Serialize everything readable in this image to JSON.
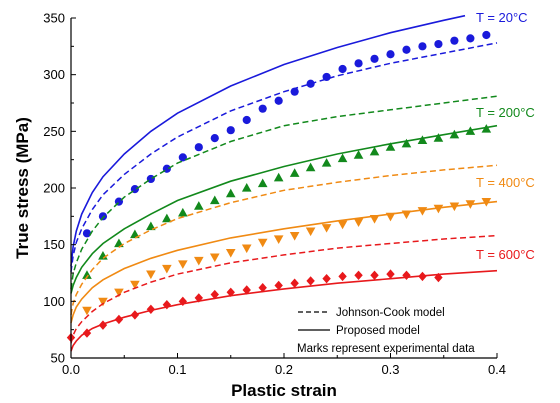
{
  "chart_data": {
    "type": "line",
    "xlabel": "Plastic strain",
    "ylabel": "True stress (MPa)",
    "xlim": [
      0.0,
      0.4
    ],
    "ylim": [
      50,
      350
    ],
    "xticks": [
      "0.0",
      "0.1",
      "0.2",
      "0.3",
      "0.4"
    ],
    "yticks": [
      "50",
      "100",
      "150",
      "200",
      "250",
      "300",
      "350"
    ],
    "grid": false,
    "legend_position": "bottom-right",
    "legend": {
      "johnson_cook": "Johnson-Cook model",
      "proposed": "Proposed model",
      "note": "Marks represent experimental data"
    },
    "series": [
      {
        "name": "T = 20°C",
        "color": "#1a1adb",
        "marker": "circle",
        "proposed": {
          "x": [
            0,
            0.002,
            0.005,
            0.01,
            0.02,
            0.03,
            0.05,
            0.075,
            0.1,
            0.15,
            0.2,
            0.25,
            0.3,
            0.35,
            0.37
          ],
          "y": [
            131,
            148,
            162,
            177,
            196,
            210,
            230,
            250,
            266,
            290,
            309,
            324,
            337,
            348,
            352
          ]
        },
        "johnson_cook": {
          "x": [
            0,
            0.002,
            0.005,
            0.01,
            0.02,
            0.03,
            0.05,
            0.075,
            0.1,
            0.15,
            0.2,
            0.25,
            0.3,
            0.35,
            0.4
          ],
          "y": [
            126,
            140,
            152,
            164,
            181,
            194,
            212,
            230,
            245,
            268,
            285,
            299,
            310,
            319,
            328
          ]
        },
        "experimental": {
          "x": [
            0.015,
            0.03,
            0.045,
            0.06,
            0.075,
            0.09,
            0.105,
            0.12,
            0.135,
            0.15,
            0.165,
            0.18,
            0.195,
            0.21,
            0.225,
            0.24,
            0.255,
            0.27,
            0.285,
            0.3,
            0.315,
            0.33,
            0.345,
            0.36,
            0.375,
            0.39
          ],
          "y": [
            160,
            175,
            188,
            199,
            208,
            217,
            227,
            236,
            244,
            251,
            260,
            270,
            277,
            285,
            292,
            298,
            305,
            310,
            314,
            318,
            322,
            325,
            327,
            330,
            332,
            335
          ]
        }
      },
      {
        "name": "T = 200°C",
        "color": "#12891c",
        "marker": "triangle-up",
        "proposed": {
          "x": [
            0,
            0.002,
            0.005,
            0.01,
            0.02,
            0.03,
            0.05,
            0.075,
            0.1,
            0.15,
            0.2,
            0.25,
            0.3,
            0.35,
            0.4
          ],
          "y": [
            107,
            114,
            121,
            130,
            142,
            151,
            164,
            177,
            189,
            206,
            219,
            230,
            239,
            247,
            255
          ]
        },
        "johnson_cook": {
          "x": [
            0,
            0.002,
            0.005,
            0.01,
            0.02,
            0.03,
            0.05,
            0.075,
            0.1,
            0.15,
            0.2,
            0.25,
            0.3,
            0.35,
            0.4
          ],
          "y": [
            111,
            124,
            134,
            146,
            162,
            174,
            192,
            208,
            222,
            241,
            255,
            263,
            269,
            275,
            281
          ]
        },
        "experimental": {
          "x": [
            0.015,
            0.03,
            0.045,
            0.06,
            0.075,
            0.09,
            0.105,
            0.12,
            0.135,
            0.15,
            0.165,
            0.18,
            0.195,
            0.21,
            0.225,
            0.24,
            0.255,
            0.27,
            0.285,
            0.3,
            0.315,
            0.33,
            0.345,
            0.36,
            0.375,
            0.39
          ],
          "y": [
            123,
            140,
            151,
            159,
            166,
            173,
            178,
            184,
            189,
            195,
            200,
            204,
            209,
            213,
            218,
            222,
            226,
            229,
            232,
            236,
            239,
            242,
            244,
            247,
            250,
            252
          ]
        }
      },
      {
        "name": "T = 400°C",
        "color": "#f08a13",
        "marker": "triangle-down",
        "proposed": {
          "x": [
            0,
            0.002,
            0.005,
            0.01,
            0.02,
            0.03,
            0.05,
            0.075,
            0.1,
            0.15,
            0.2,
            0.25,
            0.3,
            0.35,
            0.4
          ],
          "y": [
            81,
            88,
            95,
            102,
            112,
            119,
            129,
            138,
            145,
            156,
            164,
            171,
            177,
            183,
            188
          ]
        },
        "johnson_cook": {
          "x": [
            0,
            0.002,
            0.005,
            0.01,
            0.02,
            0.03,
            0.05,
            0.075,
            0.1,
            0.15,
            0.2,
            0.25,
            0.3,
            0.35,
            0.4
          ],
          "y": [
            88,
            98,
            106,
            115,
            128,
            138,
            151,
            163,
            173,
            187,
            198,
            205,
            211,
            216,
            220
          ]
        },
        "experimental": {
          "x": [
            0.015,
            0.03,
            0.045,
            0.06,
            0.075,
            0.09,
            0.105,
            0.12,
            0.135,
            0.15,
            0.165,
            0.18,
            0.195,
            0.21,
            0.225,
            0.24,
            0.255,
            0.27,
            0.285,
            0.3,
            0.315,
            0.33,
            0.345,
            0.36,
            0.375,
            0.39
          ],
          "y": [
            92,
            100,
            108,
            115,
            124,
            129,
            133,
            136,
            139,
            143,
            147,
            152,
            155,
            158,
            162,
            165,
            168,
            170,
            173,
            175,
            177,
            180,
            182,
            184,
            186,
            188
          ]
        }
      },
      {
        "name": "T = 600°C",
        "color": "#e8191c",
        "marker": "diamond",
        "proposed": {
          "x": [
            0,
            0.002,
            0.005,
            0.01,
            0.02,
            0.03,
            0.05,
            0.075,
            0.1,
            0.15,
            0.2,
            0.25,
            0.3,
            0.35,
            0.4
          ],
          "y": [
            56,
            61,
            65,
            70,
            76,
            80,
            86,
            92,
            97,
            105,
            111,
            116,
            120,
            124,
            127
          ]
        },
        "johnson_cook": {
          "x": [
            0,
            0.002,
            0.005,
            0.01,
            0.02,
            0.03,
            0.05,
            0.075,
            0.1,
            0.15,
            0.2,
            0.25,
            0.3,
            0.35,
            0.4
          ],
          "y": [
            63,
            70,
            76,
            82,
            91,
            98,
            108,
            117,
            124,
            134,
            141,
            147,
            151,
            155,
            158
          ]
        },
        "experimental": {
          "x": [
            0.0,
            0.015,
            0.03,
            0.045,
            0.06,
            0.075,
            0.09,
            0.105,
            0.12,
            0.135,
            0.15,
            0.165,
            0.18,
            0.195,
            0.21,
            0.225,
            0.24,
            0.255,
            0.27,
            0.285,
            0.3,
            0.315,
            0.33,
            0.345
          ],
          "y": [
            68,
            72,
            79,
            84,
            88,
            93,
            97,
            100,
            103,
            106,
            108,
            110,
            112,
            114,
            116,
            118,
            120,
            122,
            123,
            123,
            124,
            123,
            122,
            121
          ]
        }
      }
    ]
  }
}
